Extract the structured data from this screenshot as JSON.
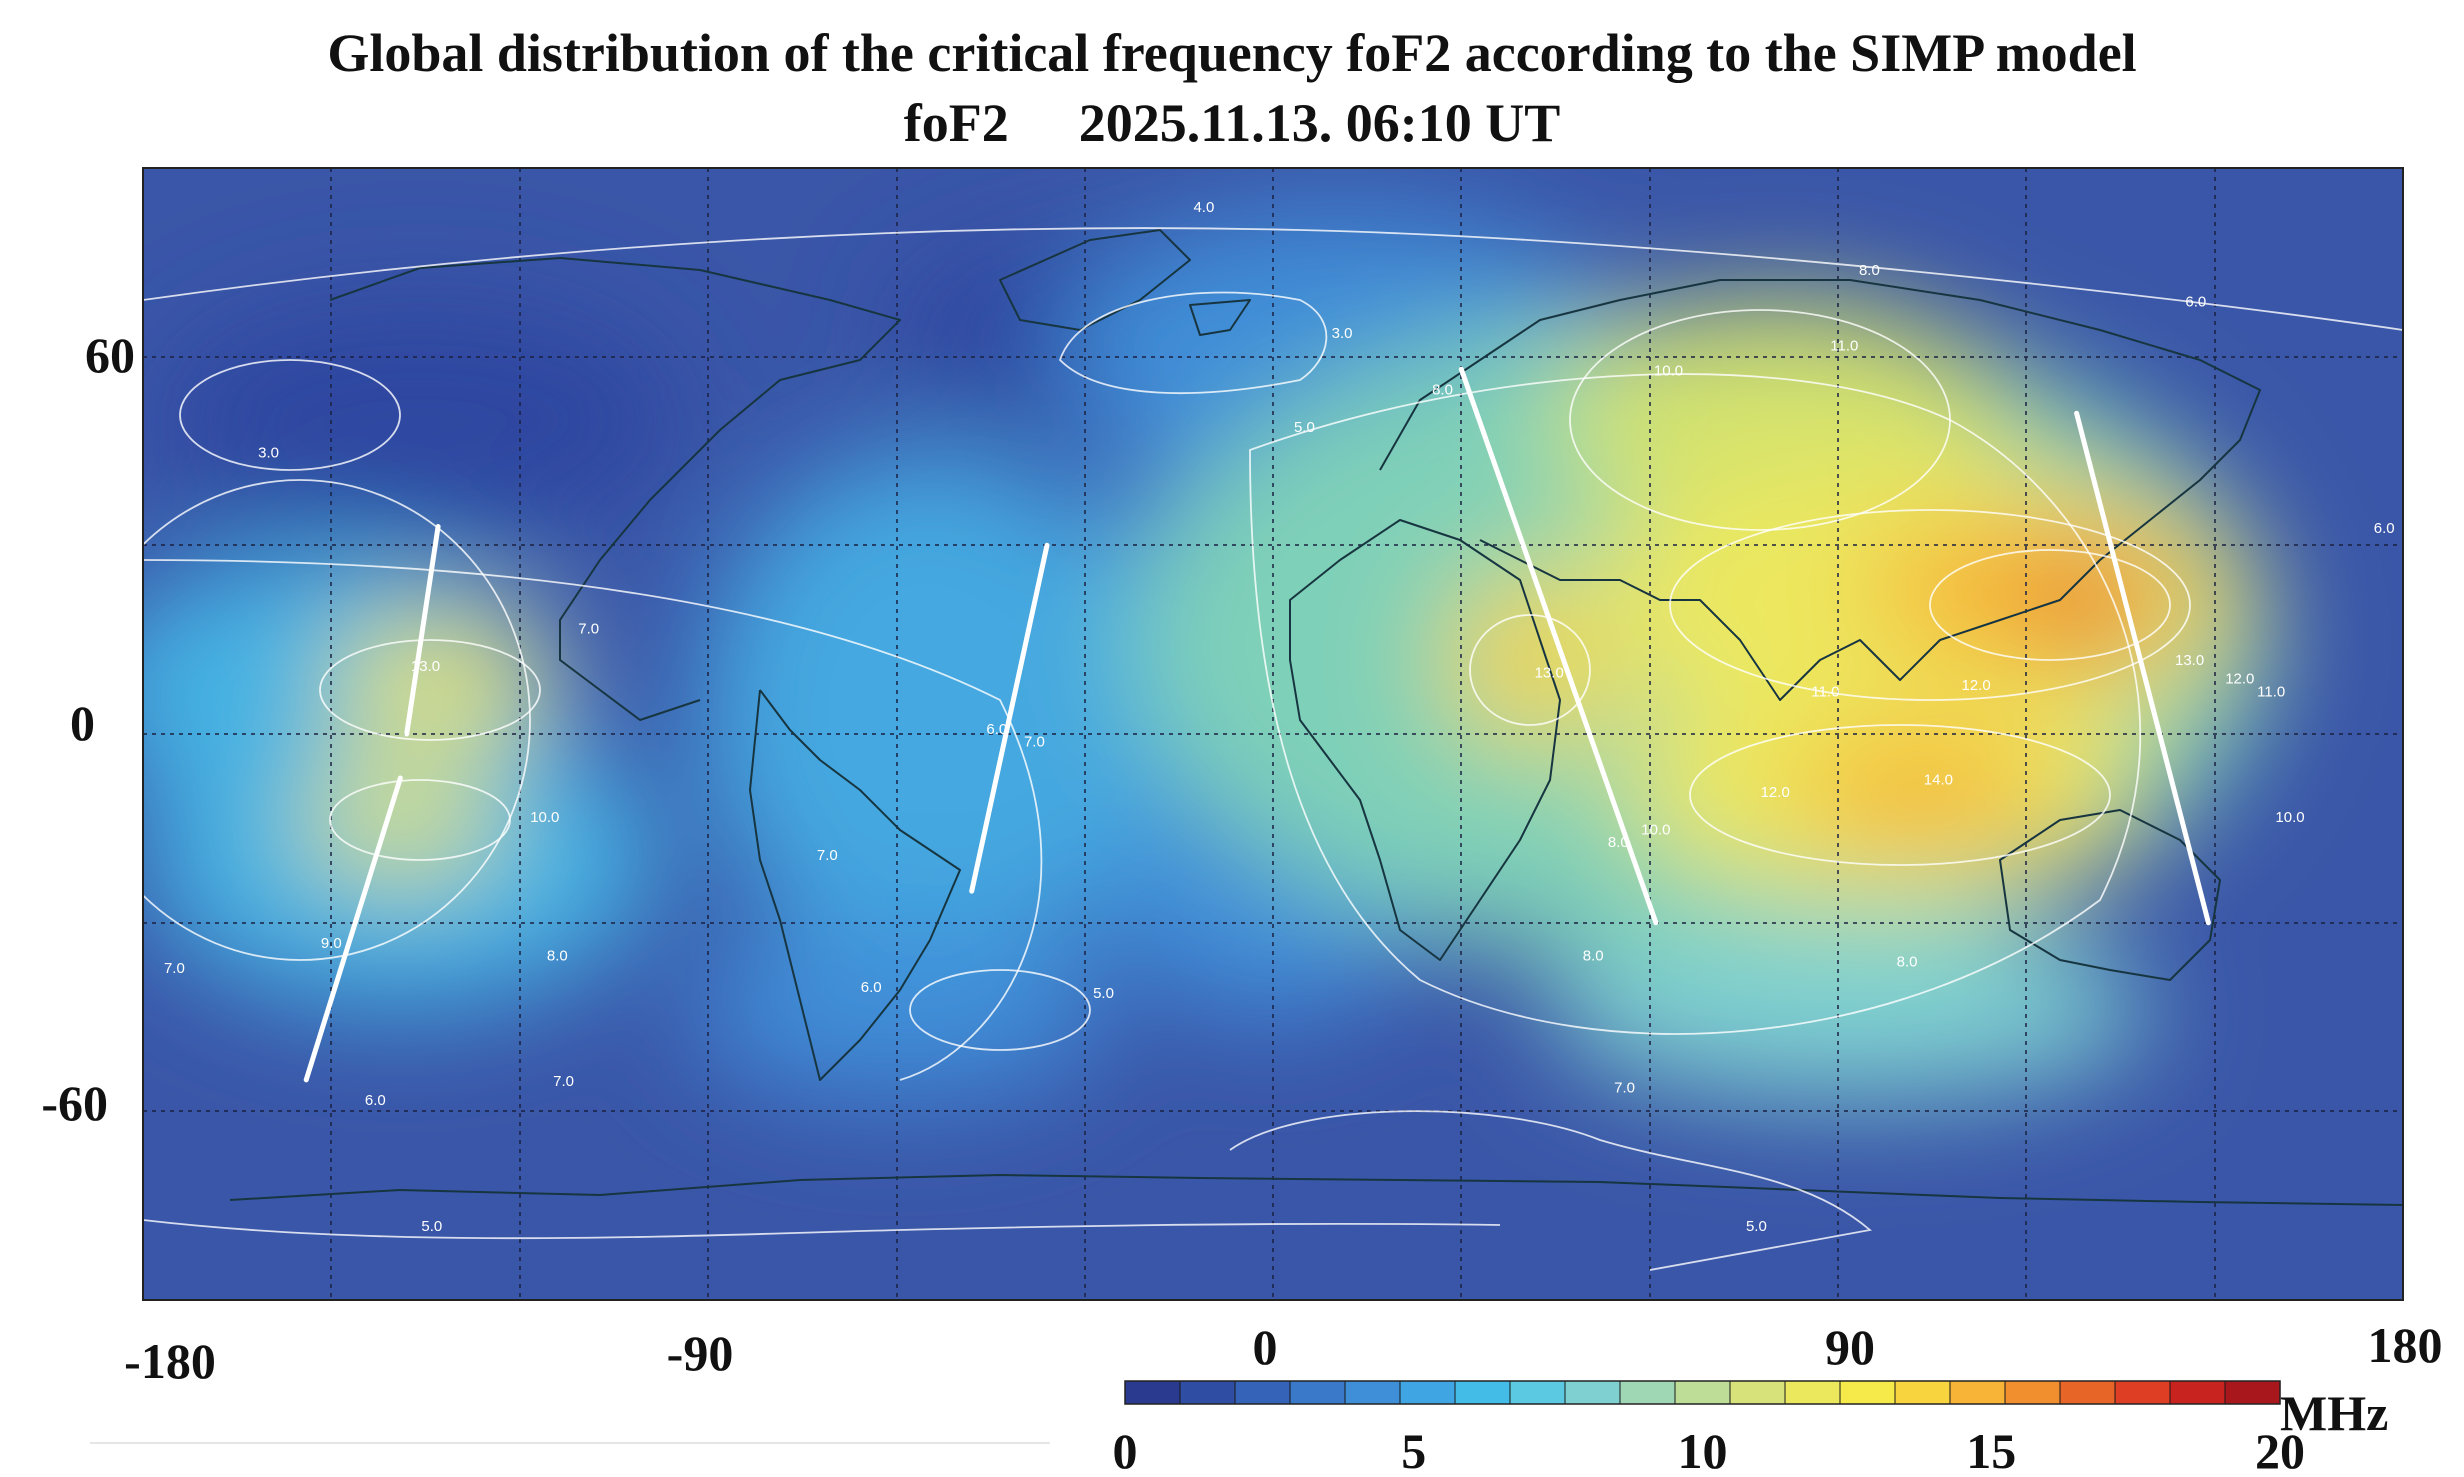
{
  "title": "Global distribution of the critical frequency foF2 according to the SIMP model",
  "subtitle_param": "foF2",
  "subtitle_time": "2025.11.13. 06:10 UT",
  "x_ticks": [
    "-180",
    "-90",
    "0",
    "90",
    "180"
  ],
  "y_ticks": [
    "60",
    "0",
    "-60"
  ],
  "colorbar": {
    "unit": "MHz",
    "min": 0,
    "max": 20,
    "ticks": [
      "0",
      "5",
      "10",
      "15",
      "20"
    ],
    "colors": [
      "#2a3a8f",
      "#2f4da3",
      "#3563b7",
      "#3a78c9",
      "#3f8ed8",
      "#3fa6e3",
      "#43bce8",
      "#5cc9e3",
      "#7fd0d0",
      "#9fd7b5",
      "#bedd96",
      "#d8e27a",
      "#ece85e",
      "#f6e94a",
      "#f8d53e",
      "#f7b436",
      "#f18e2e",
      "#e86528",
      "#de3f24",
      "#c9231f",
      "#a8171c"
    ]
  },
  "chart_data": {
    "type": "heatmap",
    "title": "Global distribution of the critical frequency foF2 according to the SIMP model",
    "xlim": [
      -180,
      180
    ],
    "ylim": [
      -90,
      90
    ],
    "x_ticks": [
      -180,
      -90,
      0,
      90,
      180
    ],
    "y_ticks": [
      60,
      0,
      -60
    ],
    "grid": true,
    "contour_labels": [
      {
        "value": "4.0",
        "lon": -11,
        "lat": 83
      },
      {
        "value": "3.0",
        "lon": 11,
        "lat": 63
      },
      {
        "value": "3.0",
        "lon": -160,
        "lat": 44
      },
      {
        "value": "5.0",
        "lon": 5,
        "lat": 48
      },
      {
        "value": "8.0",
        "lon": 27,
        "lat": 54
      },
      {
        "value": "10.0",
        "lon": 63,
        "lat": 57
      },
      {
        "value": "11.0",
        "lon": 91,
        "lat": 61
      },
      {
        "value": "8.0",
        "lon": 95,
        "lat": 73
      },
      {
        "value": "6.0",
        "lon": 147,
        "lat": 68
      },
      {
        "value": "6.0",
        "lon": 177,
        "lat": 32
      },
      {
        "value": "7.0",
        "lon": -109,
        "lat": 16
      },
      {
        "value": "13.0",
        "lon": -135,
        "lat": 10
      },
      {
        "value": "13.0",
        "lon": 44,
        "lat": 9
      },
      {
        "value": "12.0",
        "lon": 112,
        "lat": 7
      },
      {
        "value": "11.0",
        "lon": 88,
        "lat": 6
      },
      {
        "value": "13.0",
        "lon": 146,
        "lat": 11
      },
      {
        "value": "12.0",
        "lon": 154,
        "lat": 8
      },
      {
        "value": "11.0",
        "lon": 159,
        "lat": 6
      },
      {
        "value": "6.0",
        "lon": -44,
        "lat": 0
      },
      {
        "value": "7.0",
        "lon": -38,
        "lat": -2
      },
      {
        "value": "10.0",
        "lon": -116,
        "lat": -14
      },
      {
        "value": "12.0",
        "lon": 80,
        "lat": -10
      },
      {
        "value": "14.0",
        "lon": 106,
        "lat": -8
      },
      {
        "value": "10.0",
        "lon": 162,
        "lat": -14
      },
      {
        "value": "10.0",
        "lon": 61,
        "lat": -16
      },
      {
        "value": "8.0",
        "lon": 55,
        "lat": -18
      },
      {
        "value": "7.0",
        "lon": -71,
        "lat": -20
      },
      {
        "value": "8.0",
        "lon": -114,
        "lat": -36
      },
      {
        "value": "9.0",
        "lon": -150,
        "lat": -34
      },
      {
        "value": "7.0",
        "lon": -175,
        "lat": -38
      },
      {
        "value": "8.0",
        "lon": 51,
        "lat": -36
      },
      {
        "value": "8.0",
        "lon": 101,
        "lat": -37
      },
      {
        "value": "6.0",
        "lon": -64,
        "lat": -41
      },
      {
        "value": "5.0",
        "lon": -27,
        "lat": -42
      },
      {
        "value": "7.0",
        "lon": -113,
        "lat": -56
      },
      {
        "value": "7.0",
        "lon": 56,
        "lat": -57
      },
      {
        "value": "6.0",
        "lon": -143,
        "lat": -59
      },
      {
        "value": "5.0",
        "lon": -134,
        "lat": -79
      },
      {
        "value": "5.0",
        "lon": 77,
        "lat": -79
      }
    ],
    "satellite_tracks": [
      {
        "from": [
          -138,
          0
        ],
        "to": [
          -133,
          33
        ]
      },
      {
        "from": [
          -154,
          -55
        ],
        "to": [
          -139,
          -7
        ]
      },
      {
        "from": [
          -48,
          -25
        ],
        "to": [
          -36,
          30
        ]
      },
      {
        "from": [
          30,
          58
        ],
        "to": [
          61,
          -30
        ]
      },
      {
        "from": [
          128,
          51
        ],
        "to": [
          149,
          -30
        ]
      }
    ]
  }
}
